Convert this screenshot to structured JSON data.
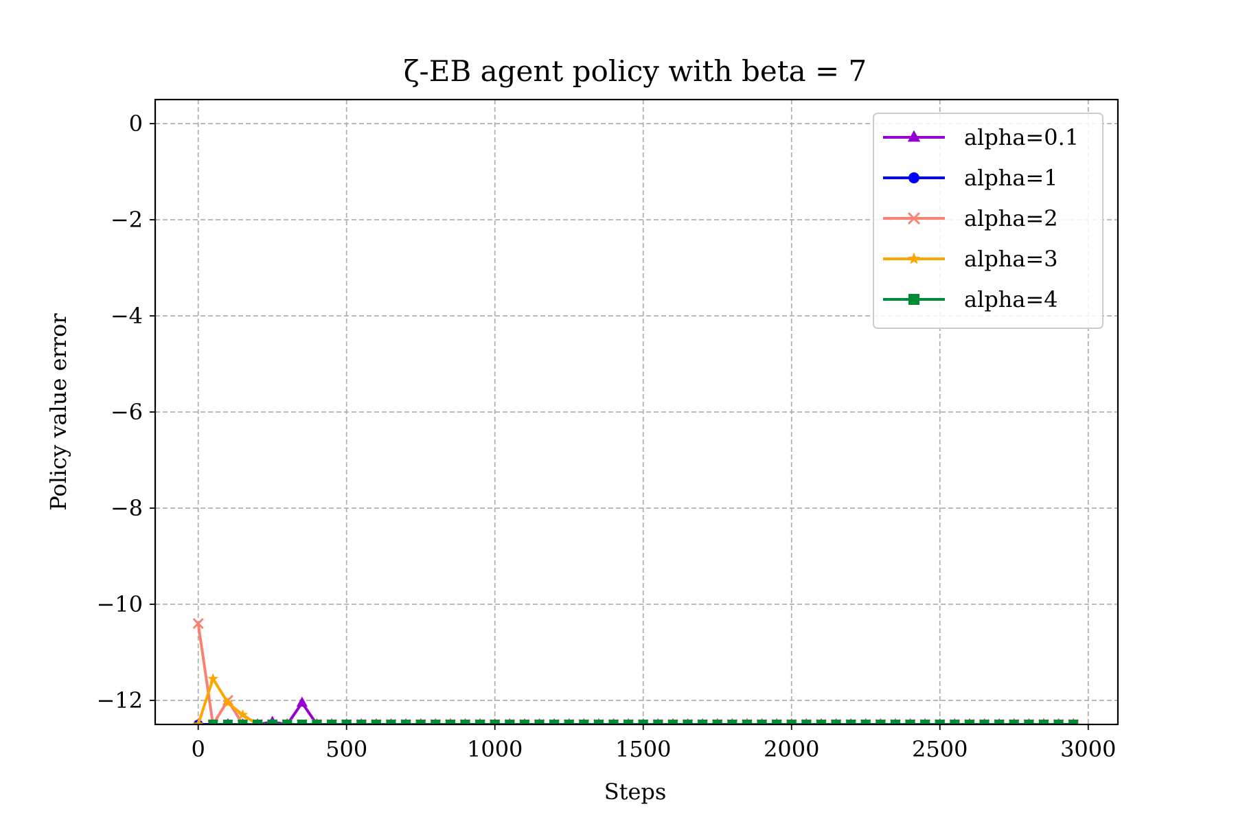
{
  "chart_data": {
    "type": "line",
    "title": "ζ-EB agent policy with beta = 7",
    "xlabel": "Steps",
    "ylabel": "Policy value error",
    "xlim": [
      -145,
      3100
    ],
    "ylim": [
      -12.5,
      0.5
    ],
    "xticks": [
      0,
      500,
      1000,
      1500,
      2000,
      2500,
      3000
    ],
    "xtick_labels": [
      "0",
      "500",
      "1000",
      "1500",
      "2000",
      "2500",
      "3000"
    ],
    "yticks": [
      0,
      -2,
      -4,
      -6,
      -8,
      -10,
      -12
    ],
    "ytick_labels": [
      "0",
      "−2",
      "−4",
      "−6",
      "−8",
      "−10",
      "−12"
    ],
    "grid": true,
    "legend_position": "top-right",
    "series": [
      {
        "name": "alpha=0.1",
        "color": "#9400d3",
        "marker": "triangle",
        "x": [
          0,
          50,
          100,
          150,
          200,
          250,
          300,
          350,
          400,
          450,
          500,
          550,
          600,
          650,
          700,
          750,
          800,
          850,
          900,
          950,
          1000,
          1050,
          1100,
          1150,
          1200,
          1250,
          1300,
          1350,
          1400,
          1450,
          1500,
          1550,
          1600,
          1650,
          1700,
          1750,
          1800,
          1850,
          1900,
          1950,
          2000,
          2050,
          2100,
          2150,
          2200,
          2250,
          2300,
          2350,
          2400,
          2450,
          2500,
          2550,
          2600,
          2650,
          2700,
          2750,
          2800,
          2850,
          2900,
          2950
        ],
        "y": [
          -12.5,
          -12.5,
          -12.5,
          -12.5,
          -12.5,
          -12.45,
          -12.5,
          -12.05,
          -12.5,
          -12.5,
          -12.5,
          -12.5,
          -12.5,
          -12.5,
          -12.5,
          -12.5,
          -12.5,
          -12.5,
          -12.5,
          -12.5,
          -12.5,
          -12.5,
          -12.5,
          -12.5,
          -12.5,
          -12.5,
          -12.5,
          -12.5,
          -12.5,
          -12.5,
          -12.5,
          -12.5,
          -12.5,
          -12.5,
          -12.5,
          -12.5,
          -12.5,
          -12.5,
          -12.5,
          -12.5,
          -12.5,
          -12.5,
          -12.5,
          -12.5,
          -12.5,
          -12.5,
          -12.5,
          -12.5,
          -12.5,
          -12.5,
          -12.5,
          -12.5,
          -12.5,
          -12.5,
          -12.5,
          -12.5,
          -12.5,
          -12.5,
          -12.5,
          -12.5
        ]
      },
      {
        "name": "alpha=1",
        "color": "#0000ff",
        "marker": "circle",
        "x": [
          0,
          50,
          100,
          150,
          200,
          250,
          300,
          350,
          400,
          450,
          500,
          550,
          600,
          650,
          700,
          750,
          800,
          850,
          900,
          950,
          1000,
          1050,
          1100,
          1150,
          1200,
          1250,
          1300,
          1350,
          1400,
          1450,
          1500,
          1550,
          1600,
          1650,
          1700,
          1750,
          1800,
          1850,
          1900,
          1950,
          2000,
          2050,
          2100,
          2150,
          2200,
          2250,
          2300,
          2350,
          2400,
          2450,
          2500,
          2550,
          2600,
          2650,
          2700,
          2750,
          2800,
          2850,
          2900,
          2950
        ],
        "y": [
          -12.5,
          -12.5,
          -12.5,
          -12.5,
          -12.5,
          -12.5,
          -12.5,
          -12.5,
          -12.5,
          -12.5,
          -12.5,
          -12.5,
          -12.5,
          -12.5,
          -12.5,
          -12.5,
          -12.5,
          -12.5,
          -12.5,
          -12.5,
          -12.5,
          -12.5,
          -12.5,
          -12.5,
          -12.5,
          -12.5,
          -12.5,
          -12.5,
          -12.5,
          -12.5,
          -12.5,
          -12.5,
          -12.5,
          -12.5,
          -12.5,
          -12.5,
          -12.5,
          -12.5,
          -12.5,
          -12.5,
          -12.5,
          -12.5,
          -12.5,
          -12.5,
          -12.5,
          -12.5,
          -12.5,
          -12.5,
          -12.5,
          -12.5,
          -12.5,
          -12.5,
          -12.5,
          -12.5,
          -12.5,
          -12.5,
          -12.5,
          -12.5,
          -12.5,
          -12.5
        ]
      },
      {
        "name": "alpha=2",
        "color": "#fa8072",
        "marker": "x",
        "x": [
          0,
          50,
          100,
          150,
          200,
          250,
          300,
          350,
          400,
          450,
          500,
          550,
          600,
          650,
          700,
          750,
          800,
          850,
          900,
          950,
          1000,
          1050,
          1100,
          1150,
          1200,
          1250,
          1300,
          1350,
          1400,
          1450,
          1500,
          1550,
          1600,
          1650,
          1700,
          1750,
          1800,
          1850,
          1900,
          1950,
          2000,
          2050,
          2100,
          2150,
          2200,
          2250,
          2300,
          2350,
          2400,
          2450,
          2500,
          2550,
          2600,
          2650,
          2700,
          2750,
          2800,
          2850,
          2900,
          2950
        ],
        "y": [
          -10.4,
          -12.5,
          -12.0,
          -12.5,
          -12.5,
          -12.5,
          -12.5,
          -12.5,
          -12.5,
          -12.5,
          -12.5,
          -12.5,
          -12.5,
          -12.5,
          -12.5,
          -12.5,
          -12.5,
          -12.5,
          -12.5,
          -12.5,
          -12.5,
          -12.5,
          -12.5,
          -12.5,
          -12.5,
          -12.5,
          -12.5,
          -12.5,
          -12.5,
          -12.5,
          -12.5,
          -12.5,
          -12.5,
          -12.5,
          -12.5,
          -12.5,
          -12.5,
          -12.5,
          -12.5,
          -12.5,
          -12.5,
          -12.5,
          -12.5,
          -12.5,
          -12.5,
          -12.5,
          -12.5,
          -12.5,
          -12.5,
          -12.5,
          -12.5,
          -12.5,
          -12.5,
          -12.5,
          -12.5,
          -12.5,
          -12.5,
          -12.5,
          -12.5,
          -12.5
        ]
      },
      {
        "name": "alpha=3",
        "color": "#ffa500",
        "marker": "star",
        "x": [
          0,
          50,
          100,
          150,
          200,
          250,
          300,
          350,
          400,
          450,
          500,
          550,
          600,
          650,
          700,
          750,
          800,
          850,
          900,
          950,
          1000,
          1050,
          1100,
          1150,
          1200,
          1250,
          1300,
          1350,
          1400,
          1450,
          1500,
          1550,
          1600,
          1650,
          1700,
          1750,
          1800,
          1850,
          1900,
          1950,
          2000,
          2050,
          2100,
          2150,
          2200,
          2250,
          2300,
          2350,
          2400,
          2450,
          2500,
          2550,
          2600,
          2650,
          2700,
          2750,
          2800,
          2850,
          2900,
          2950
        ],
        "y": [
          -12.5,
          -11.55,
          -12.05,
          -12.3,
          -12.5,
          -12.5,
          -12.5,
          -12.5,
          -12.5,
          -12.5,
          -12.5,
          -12.5,
          -12.5,
          -12.5,
          -12.5,
          -12.5,
          -12.5,
          -12.5,
          -12.5,
          -12.5,
          -12.5,
          -12.5,
          -12.5,
          -12.5,
          -12.5,
          -12.5,
          -12.5,
          -12.5,
          -12.5,
          -12.5,
          -12.5,
          -12.5,
          -12.5,
          -12.5,
          -12.5,
          -12.5,
          -12.5,
          -12.5,
          -12.5,
          -12.5,
          -12.5,
          -12.5,
          -12.5,
          -12.5,
          -12.5,
          -12.5,
          -12.5,
          -12.5,
          -12.5,
          -12.5,
          -12.5,
          -12.5,
          -12.5,
          -12.5,
          -12.5,
          -12.5,
          -12.5,
          -12.5,
          -12.5,
          -12.5
        ]
      },
      {
        "name": "alpha=4",
        "color": "#008c37",
        "marker": "square",
        "x": [
          50,
          100,
          150,
          200,
          250,
          300,
          350,
          400,
          450,
          500,
          550,
          600,
          650,
          700,
          750,
          800,
          850,
          900,
          950,
          1000,
          1050,
          1100,
          1150,
          1200,
          1250,
          1300,
          1350,
          1400,
          1450,
          1500,
          1550,
          1600,
          1650,
          1700,
          1750,
          1800,
          1850,
          1900,
          1950,
          2000,
          2050,
          2100,
          2150,
          2200,
          2250,
          2300,
          2350,
          2400,
          2450,
          2500,
          2550,
          2600,
          2650,
          2700,
          2750,
          2800,
          2850,
          2900,
          2950
        ],
        "y": [
          -12.5,
          -12.5,
          -12.5,
          -12.5,
          -12.5,
          -12.5,
          -12.5,
          -12.5,
          -12.5,
          -12.5,
          -12.5,
          -12.5,
          -12.5,
          -12.5,
          -12.5,
          -12.5,
          -12.5,
          -12.5,
          -12.5,
          -12.5,
          -12.5,
          -12.5,
          -12.5,
          -12.5,
          -12.5,
          -12.5,
          -12.5,
          -12.5,
          -12.5,
          -12.5,
          -12.5,
          -12.5,
          -12.5,
          -12.5,
          -12.5,
          -12.5,
          -12.5,
          -12.5,
          -12.5,
          -12.5,
          -12.5,
          -12.5,
          -12.5,
          -12.5,
          -12.5,
          -12.5,
          -12.5,
          -12.5,
          -12.5,
          -12.5,
          -12.5,
          -12.5,
          -12.5,
          -12.5,
          -12.5,
          -12.5,
          -12.5,
          -12.5,
          -12.5
        ]
      }
    ]
  }
}
